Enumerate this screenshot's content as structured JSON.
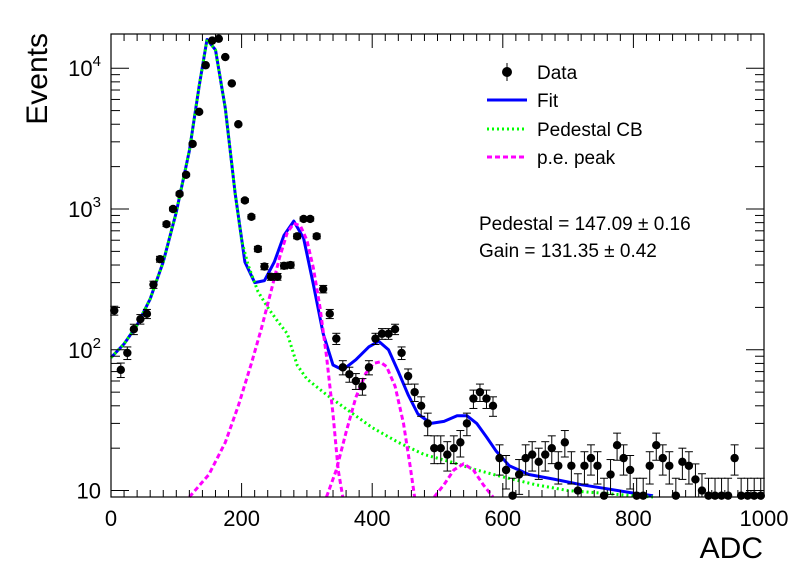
{
  "chart_data": {
    "type": "scatter",
    "xlabel": "ADC",
    "ylabel": "Events",
    "xlim": [
      0,
      1000
    ],
    "ylim": [
      9.0,
      17500
    ],
    "y_scale": "log",
    "grid": false,
    "legend_position": "top-right",
    "x_ticks": [
      "0",
      "200",
      "400",
      "600",
      "800",
      "1000"
    ],
    "y_ticks": [
      {
        "value": 10,
        "mantissa": "10",
        "exponent": ""
      },
      {
        "value": 100,
        "mantissa": "10",
        "exponent": "2"
      },
      {
        "value": 1000,
        "mantissa": "10",
        "exponent": "3"
      },
      {
        "value": 10000,
        "mantissa": "10",
        "exponent": "4"
      }
    ],
    "legend": [
      {
        "label": "Data",
        "style": "marker",
        "color": "#000000"
      },
      {
        "label": "Fit",
        "style": "solid",
        "color": "#0000ff"
      },
      {
        "label": "Pedestal CB",
        "style": "dotted",
        "color": "#00ff00"
      },
      {
        "label": "p.e. peak",
        "style": "dashed",
        "color": "#ff00ff"
      }
    ],
    "annotations": [
      "Pedestal = 147.09 ± 0.16",
      "Gain = 131.35 ± 0.42"
    ],
    "series": [
      {
        "name": "Data",
        "style": "points",
        "color": "#000000",
        "points": [
          [
            5,
            190
          ],
          [
            15,
            72
          ],
          [
            25,
            95
          ],
          [
            35,
            140
          ],
          [
            45,
            165
          ],
          [
            55,
            180
          ],
          [
            65,
            290
          ],
          [
            75,
            440
          ],
          [
            85,
            780
          ],
          [
            95,
            1000
          ],
          [
            105,
            1280
          ],
          [
            115,
            1750
          ],
          [
            125,
            2900
          ],
          [
            135,
            4900
          ],
          [
            145,
            10500
          ],
          [
            155,
            15700
          ],
          [
            165,
            16200
          ],
          [
            175,
            12000
          ],
          [
            185,
            7800
          ],
          [
            195,
            4000
          ],
          [
            205,
            1150
          ],
          [
            215,
            880
          ],
          [
            225,
            520
          ],
          [
            235,
            390
          ],
          [
            245,
            330
          ],
          [
            255,
            330
          ],
          [
            265,
            395
          ],
          [
            275,
            400
          ],
          [
            285,
            640
          ],
          [
            295,
            850
          ],
          [
            305,
            850
          ],
          [
            315,
            640
          ],
          [
            325,
            270
          ],
          [
            335,
            180
          ],
          [
            345,
            120
          ],
          [
            355,
            75
          ],
          [
            365,
            67
          ],
          [
            375,
            60
          ],
          [
            385,
            55
          ],
          [
            395,
            75
          ],
          [
            405,
            120
          ],
          [
            415,
            130
          ],
          [
            425,
            130
          ],
          [
            435,
            140
          ],
          [
            445,
            95
          ],
          [
            455,
            65
          ],
          [
            465,
            50
          ],
          [
            475,
            40
          ],
          [
            485,
            30
          ],
          [
            495,
            20
          ],
          [
            505,
            20
          ],
          [
            515,
            18
          ],
          [
            525,
            20
          ],
          [
            535,
            22
          ],
          [
            545,
            30
          ],
          [
            555,
            45
          ],
          [
            565,
            50
          ],
          [
            575,
            45
          ],
          [
            585,
            40
          ],
          [
            595,
            17
          ],
          [
            605,
            14
          ],
          [
            615,
            9.2
          ],
          [
            625,
            13
          ],
          [
            635,
            17
          ],
          [
            645,
            18
          ],
          [
            655,
            16
          ],
          [
            665,
            18
          ],
          [
            675,
            20
          ],
          [
            685,
            15
          ],
          [
            695,
            22
          ],
          [
            705,
            15
          ],
          [
            715,
            10
          ],
          [
            725,
            15
          ],
          [
            735,
            17
          ],
          [
            745,
            15
          ],
          [
            755,
            9.2
          ],
          [
            765,
            13
          ],
          [
            775,
            21
          ],
          [
            785,
            17
          ],
          [
            795,
            14
          ],
          [
            805,
            9.2
          ],
          [
            815,
            9.2
          ],
          [
            825,
            15
          ],
          [
            835,
            21
          ],
          [
            845,
            17
          ],
          [
            855,
            15
          ],
          [
            865,
            9.2
          ],
          [
            875,
            16
          ],
          [
            885,
            15
          ],
          [
            895,
            12
          ],
          [
            905,
            10
          ],
          [
            915,
            9.2
          ],
          [
            925,
            9.2
          ],
          [
            935,
            9.2
          ],
          [
            945,
            9.2
          ],
          [
            955,
            17
          ],
          [
            965,
            9.2
          ],
          [
            975,
            9.2
          ],
          [
            985,
            9.2
          ],
          [
            995,
            9.2
          ]
        ]
      },
      {
        "name": "Fit",
        "style": "solid",
        "color": "#0000ff",
        "points": [
          [
            0,
            88
          ],
          [
            20,
            110
          ],
          [
            40,
            150
          ],
          [
            60,
            230
          ],
          [
            80,
            420
          ],
          [
            100,
            950
          ],
          [
            120,
            2600
          ],
          [
            135,
            7500
          ],
          [
            147,
            16000
          ],
          [
            160,
            13500
          ],
          [
            175,
            5200
          ],
          [
            190,
            1300
          ],
          [
            205,
            420
          ],
          [
            220,
            300
          ],
          [
            235,
            310
          ],
          [
            250,
            420
          ],
          [
            265,
            650
          ],
          [
            280,
            820
          ],
          [
            295,
            620
          ],
          [
            310,
            290
          ],
          [
            325,
            130
          ],
          [
            340,
            78
          ],
          [
            355,
            72
          ],
          [
            375,
            85
          ],
          [
            395,
            105
          ],
          [
            410,
            115
          ],
          [
            425,
            100
          ],
          [
            440,
            70
          ],
          [
            455,
            48
          ],
          [
            470,
            35
          ],
          [
            490,
            30
          ],
          [
            510,
            31
          ],
          [
            530,
            34
          ],
          [
            545,
            34
          ],
          [
            560,
            30
          ],
          [
            575,
            24
          ],
          [
            590,
            19
          ],
          [
            610,
            15
          ],
          [
            640,
            13
          ],
          [
            680,
            12
          ],
          [
            720,
            11
          ],
          [
            760,
            10.3
          ],
          [
            800,
            9.6
          ],
          [
            830,
            9.2
          ]
        ]
      },
      {
        "name": "Pedestal CB",
        "style": "dotted",
        "color": "#00ff00",
        "points": [
          [
            0,
            88
          ],
          [
            20,
            110
          ],
          [
            40,
            150
          ],
          [
            60,
            230
          ],
          [
            80,
            420
          ],
          [
            100,
            950
          ],
          [
            120,
            2600
          ],
          [
            135,
            7500
          ],
          [
            147,
            16000
          ],
          [
            160,
            13500
          ],
          [
            175,
            5200
          ],
          [
            190,
            1300
          ],
          [
            200,
            600
          ],
          [
            210,
            400
          ],
          [
            225,
            260
          ],
          [
            240,
            200
          ],
          [
            255,
            160
          ],
          [
            270,
            130
          ],
          [
            285,
            78
          ],
          [
            300,
            62
          ],
          [
            330,
            48
          ],
          [
            360,
            38
          ],
          [
            400,
            28
          ],
          [
            440,
            22
          ],
          [
            480,
            18
          ],
          [
            520,
            16
          ],
          [
            560,
            14
          ],
          [
            600,
            12.5
          ],
          [
            650,
            11
          ],
          [
            700,
            10
          ],
          [
            750,
            9.6
          ],
          [
            800,
            9.2
          ],
          [
            830,
            9.0
          ]
        ]
      },
      {
        "name": "p.e. peak",
        "style": "dashed",
        "color": "#ff00ff",
        "points": [
          [
            120,
            9.0
          ],
          [
            150,
            13
          ],
          [
            175,
            22
          ],
          [
            195,
            40
          ],
          [
            215,
            80
          ],
          [
            230,
            140
          ],
          [
            245,
            260
          ],
          [
            258,
            450
          ],
          [
            270,
            680
          ],
          [
            280,
            790
          ],
          [
            290,
            760
          ],
          [
            300,
            600
          ],
          [
            310,
            380
          ],
          [
            320,
            200
          ],
          [
            330,
            90
          ],
          [
            340,
            35
          ],
          [
            348,
            14
          ],
          [
            355,
            9.0
          ]
        ]
      },
      {
        "name": "p.e. peak",
        "style": "dashed",
        "color": "#ff00ff",
        "points": [
          [
            330,
            9.0
          ],
          [
            345,
            14
          ],
          [
            360,
            26
          ],
          [
            375,
            46
          ],
          [
            390,
            68
          ],
          [
            402,
            80
          ],
          [
            412,
            82
          ],
          [
            422,
            76
          ],
          [
            435,
            55
          ],
          [
            448,
            30
          ],
          [
            458,
            15
          ],
          [
            465,
            9.0
          ]
        ]
      },
      {
        "name": "p.e. peak",
        "style": "dashed",
        "color": "#ff00ff",
        "points": [
          [
            495,
            9.0
          ],
          [
            510,
            11
          ],
          [
            525,
            14
          ],
          [
            540,
            15.5
          ],
          [
            555,
            14
          ],
          [
            570,
            11
          ],
          [
            585,
            9.0
          ]
        ]
      }
    ]
  }
}
